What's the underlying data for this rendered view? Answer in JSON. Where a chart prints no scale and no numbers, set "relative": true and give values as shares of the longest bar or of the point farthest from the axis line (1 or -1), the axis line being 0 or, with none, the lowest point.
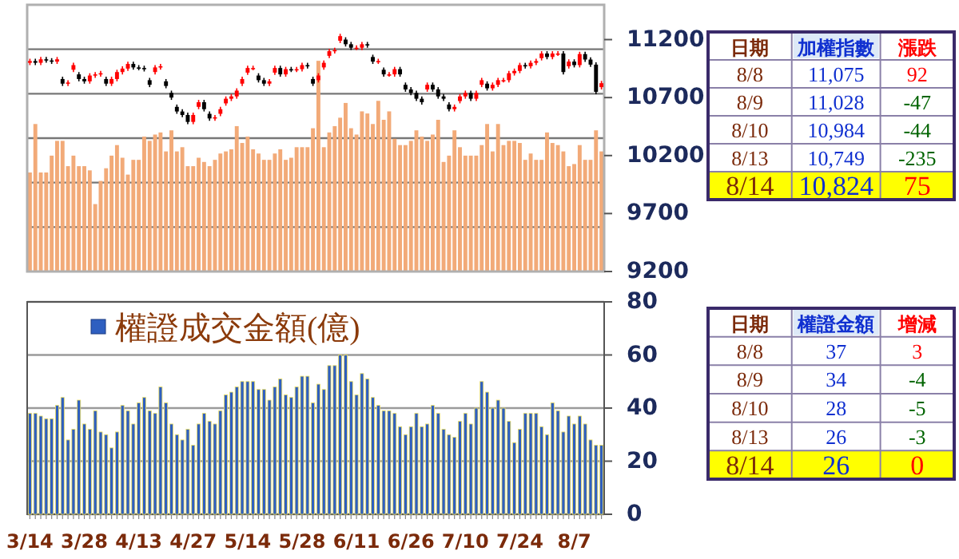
{
  "chart_data": [
    {
      "type": "candlestick",
      "categories": [
        null,
        null,
        null,
        null,
        null,
        null,
        null,
        null,
        null,
        null,
        null,
        null,
        null,
        null,
        null,
        null,
        null,
        null,
        null,
        null,
        null,
        null,
        null,
        null,
        null,
        null,
        null,
        null,
        null,
        null,
        null,
        null,
        null,
        null,
        null,
        null,
        null,
        null,
        null,
        null,
        null,
        null,
        null,
        null,
        null,
        null,
        null,
        null,
        null,
        null,
        null,
        null,
        null,
        null,
        null,
        null,
        null,
        null,
        null,
        null,
        null,
        null,
        null,
        null,
        null,
        null,
        null,
        null,
        null,
        null,
        null,
        null,
        null,
        null,
        null,
        null,
        null,
        null,
        null,
        null,
        null,
        null,
        null,
        null,
        null,
        null,
        null,
        null,
        null,
        null,
        null,
        null,
        null,
        null,
        null,
        null,
        null,
        null,
        null,
        null,
        null,
        null,
        null,
        null,
        null,
        null
      ],
      "ohlc": [
        [
          11000,
          11035,
          10980,
          11015
        ],
        [
          11015,
          11035,
          10980,
          11000
        ],
        [
          11000,
          11050,
          10980,
          11030
        ],
        [
          11030,
          11050,
          11000,
          11020
        ],
        [
          11020,
          11040,
          10990,
          11010
        ],
        [
          11010,
          11050,
          10990,
          11030
        ],
        [
          10860,
          10880,
          10800,
          10820
        ],
        [
          10820,
          10850,
          10800,
          10830
        ],
        [
          10940,
          11000,
          10920,
          10980
        ],
        [
          10900,
          10920,
          10840,
          10860
        ],
        [
          10860,
          10880,
          10820,
          10840
        ],
        [
          10840,
          10910,
          10820,
          10890
        ],
        [
          10890,
          10920,
          10870,
          10900
        ],
        [
          10900,
          10930,
          10880,
          10910
        ],
        [
          10860,
          10880,
          10800,
          10820
        ],
        [
          10820,
          10880,
          10800,
          10860
        ],
        [
          10860,
          10940,
          10840,
          10920
        ],
        [
          10920,
          10970,
          10900,
          10950
        ],
        [
          10950,
          11010,
          10930,
          10990
        ],
        [
          10990,
          11010,
          10940,
          10960
        ],
        [
          10960,
          10980,
          10935,
          10955
        ],
        [
          10955,
          10975,
          10925,
          10945
        ],
        [
          10850,
          10870,
          10790,
          10810
        ],
        [
          10920,
          10980,
          10900,
          10960
        ],
        [
          10960,
          10990,
          10940,
          10970
        ],
        [
          10840,
          10860,
          10780,
          10800
        ],
        [
          10740,
          10760,
          10680,
          10700
        ],
        [
          10620,
          10640,
          10560,
          10580
        ],
        [
          10580,
          10600,
          10530,
          10550
        ],
        [
          10550,
          10570,
          10470,
          10490
        ],
        [
          10490,
          10570,
          10470,
          10550
        ],
        [
          10620,
          10680,
          10600,
          10660
        ],
        [
          10660,
          10680,
          10580,
          10600
        ],
        [
          10560,
          10580,
          10500,
          10520
        ],
        [
          10520,
          10550,
          10500,
          10530
        ],
        [
          10560,
          10620,
          10540,
          10600
        ],
        [
          10650,
          10710,
          10630,
          10690
        ],
        [
          10690,
          10730,
          10670,
          10710
        ],
        [
          10710,
          10780,
          10690,
          10760
        ],
        [
          10820,
          10880,
          10800,
          10860
        ],
        [
          10915,
          10975,
          10895,
          10955
        ],
        [
          10955,
          10975,
          10935,
          10955
        ],
        [
          10890,
          10910,
          10830,
          10850
        ],
        [
          10850,
          10870,
          10800,
          10820
        ],
        [
          10820,
          10860,
          10800,
          10840
        ],
        [
          10915,
          10975,
          10895,
          10955
        ],
        [
          10955,
          10975,
          10880,
          10900
        ],
        [
          10900,
          10965,
          10880,
          10945
        ],
        [
          10945,
          10965,
          10920,
          10940
        ],
        [
          10940,
          10965,
          10920,
          10945
        ],
        [
          10945,
          11000,
          10925,
          10980
        ],
        [
          10980,
          11000,
          10950,
          10970
        ],
        [
          10860,
          10880,
          10800,
          10820
        ],
        [
          10850,
          10910,
          10830,
          10890
        ],
        [
          10960,
          11020,
          10940,
          11000
        ],
        [
          11060,
          11120,
          11040,
          11100
        ],
        [
          11100,
          11130,
          11080,
          11110
        ],
        [
          11190,
          11250,
          11170,
          11230
        ],
        [
          11200,
          11220,
          11140,
          11160
        ],
        [
          11160,
          11180,
          11110,
          11130
        ],
        [
          11130,
          11150,
          11110,
          11130
        ],
        [
          11130,
          11180,
          11110,
          11160
        ],
        [
          11160,
          11180,
          11130,
          11150
        ],
        [
          11050,
          11070,
          10990,
          11010
        ],
        [
          11010,
          11035,
          10990,
          11015
        ],
        [
          10940,
          10960,
          10880,
          10900
        ],
        [
          10900,
          10920,
          10880,
          10900
        ],
        [
          10900,
          10965,
          10880,
          10945
        ],
        [
          10945,
          10965,
          10880,
          10900
        ],
        [
          10810,
          10830,
          10750,
          10770
        ],
        [
          10770,
          10790,
          10720,
          10740
        ],
        [
          10740,
          10760,
          10670,
          10690
        ],
        [
          10690,
          10710,
          10640,
          10660
        ],
        [
          10770,
          10830,
          10750,
          10810
        ],
        [
          10810,
          10830,
          10750,
          10770
        ],
        [
          10770,
          10790,
          10690,
          10710
        ],
        [
          10710,
          10730,
          10670,
          10690
        ],
        [
          10640,
          10660,
          10580,
          10600
        ],
        [
          10600,
          10640,
          10580,
          10620
        ],
        [
          10670,
          10730,
          10650,
          10710
        ],
        [
          10710,
          10760,
          10690,
          10740
        ],
        [
          10740,
          10760,
          10670,
          10690
        ],
        [
          10690,
          10760,
          10670,
          10740
        ],
        [
          10810,
          10870,
          10790,
          10850
        ],
        [
          10820,
          10840,
          10760,
          10780
        ],
        [
          10780,
          10830,
          10760,
          10810
        ],
        [
          10810,
          10870,
          10790,
          10850
        ],
        [
          10850,
          10870,
          10830,
          10850
        ],
        [
          10850,
          10930,
          10830,
          10910
        ],
        [
          10910,
          10950,
          10890,
          10930
        ],
        [
          10930,
          11000,
          10910,
          10980
        ],
        [
          10980,
          11000,
          10950,
          10970
        ],
        [
          10970,
          11020,
          10950,
          11000
        ],
        [
          11000,
          11035,
          10980,
          11015
        ],
        [
          11040,
          11100,
          11020,
          11080
        ],
        [
          11080,
          11100,
          11030,
          11050
        ],
        [
          11050,
          11100,
          11030,
          11080
        ],
        [
          11080,
          11100,
          11060,
          11080
        ],
        [
          11080,
          11100,
          10900,
          10920
        ],
        [
          10970,
          11030,
          10950,
          11010
        ],
        [
          11010,
          11030,
          10960,
          10980
        ],
        [
          10980,
          11095,
          10960,
          11075
        ],
        [
          11075,
          11095,
          11008,
          11028
        ],
        [
          11028,
          11048,
          10964,
          10984
        ],
        [
          10984,
          11004,
          10729,
          10749
        ],
        [
          10790,
          10844,
          10770,
          10824
        ]
      ],
      "colors": [
        "#ff0000",
        "#000000",
        "#ff0000",
        "#000000",
        "#000000",
        "#ff0000",
        "#000000",
        "#ff0000",
        "#ff0000",
        "#000000",
        "#000000",
        "#ff0000",
        "#ff0000",
        "#ff0000",
        "#000000",
        "#ff0000",
        "#ff0000",
        "#ff0000",
        "#ff0000",
        "#000000",
        "#000000",
        "#000000",
        "#000000",
        "#ff0000",
        "#ff0000",
        "#000000",
        "#000000",
        "#000000",
        "#000000",
        "#000000",
        "#ff0000",
        "#ff0000",
        "#000000",
        "#000000",
        "#ff0000",
        "#ff0000",
        "#ff0000",
        "#ff0000",
        "#ff0000",
        "#ff0000",
        "#ff0000",
        "#ff0000",
        "#000000",
        "#000000",
        "#ff0000",
        "#ff0000",
        "#000000",
        "#ff0000",
        "#000000",
        "#ff0000",
        "#ff0000",
        "#000000",
        "#000000",
        "#ff0000",
        "#ff0000",
        "#ff0000",
        "#ff0000",
        "#ff0000",
        "#000000",
        "#000000",
        "#ff0000",
        "#ff0000",
        "#000000",
        "#000000",
        "#ff0000",
        "#000000",
        "#ff0000",
        "#ff0000",
        "#000000",
        "#000000",
        "#000000",
        "#000000",
        "#000000",
        "#ff0000",
        "#000000",
        "#000000",
        "#000000",
        "#000000",
        "#ff0000",
        "#ff0000",
        "#ff0000",
        "#000000",
        "#ff0000",
        "#ff0000",
        "#000000",
        "#ff0000",
        "#ff0000",
        "#ff0000",
        "#ff0000",
        "#ff0000",
        "#ff0000",
        "#000000",
        "#ff0000",
        "#ff0000",
        "#ff0000",
        "#000000",
        "#ff0000",
        "#ff0000",
        "#000000",
        "#ff0000",
        "#000000",
        "#ff0000",
        "#000000",
        "#000000",
        "#000000",
        "#ff0000"
      ],
      "ylim": [
        9200,
        11500
      ],
      "yticks": [
        9200,
        9700,
        10200,
        10700,
        11200
      ],
      "tick_labels": "y"
    },
    {
      "type": "bar",
      "categories": [
        null,
        null,
        null,
        null,
        null,
        null,
        null,
        null,
        null,
        null,
        null,
        null,
        null,
        null,
        null,
        null,
        null,
        null,
        null,
        null,
        null,
        null,
        null,
        null,
        null,
        null,
        null,
        null,
        null,
        null,
        null,
        null,
        null,
        null,
        null,
        null,
        null,
        null,
        null,
        null,
        null,
        null,
        null,
        null,
        null,
        null,
        null,
        null,
        null,
        null,
        null,
        null,
        null,
        null,
        null,
        null,
        null,
        null,
        null,
        null,
        null,
        null,
        null,
        null,
        null,
        null,
        null,
        null,
        null,
        null,
        null,
        null,
        null,
        null,
        null,
        null,
        null,
        null,
        null,
        null,
        null,
        null,
        null,
        null,
        null,
        null,
        null,
        null,
        null,
        null,
        null,
        null,
        null,
        null,
        null,
        null,
        null,
        null,
        null,
        null,
        null,
        null,
        null,
        null,
        null,
        null
      ],
      "values": [
        0.47,
        0.7,
        0.47,
        0.47,
        0.55,
        0.62,
        0.62,
        0.5,
        0.55,
        0.5,
        0.5,
        0.48,
        0.32,
        0.43,
        0.49,
        0.55,
        0.6,
        0.54,
        0.46,
        0.53,
        0.53,
        0.64,
        0.62,
        0.65,
        0.66,
        0.57,
        0.67,
        0.57,
        0.59,
        0.5,
        0.5,
        0.54,
        0.52,
        0.5,
        0.53,
        0.56,
        0.57,
        0.58,
        0.69,
        0.61,
        0.64,
        0.58,
        0.56,
        0.53,
        0.53,
        0.56,
        0.58,
        0.53,
        0.54,
        0.59,
        0.59,
        0.59,
        0.68,
        1,
        0.59,
        0.66,
        0.69,
        0.73,
        0.8,
        0.68,
        0.65,
        0.76,
        0.75,
        0.7,
        0.81,
        0.72,
        0.76,
        0.63,
        0.6,
        0.6,
        0.62,
        0.67,
        0.64,
        0.62,
        0.65,
        0.72,
        0.52,
        0.55,
        0.67,
        0.59,
        0.55,
        0.55,
        0.55,
        0.6,
        0.7,
        0.57,
        0.7,
        0.6,
        0.62,
        0.62,
        0.61,
        0.53,
        0.56,
        0.53,
        0.53,
        0.66,
        0.61,
        0.6,
        0.57,
        0.5,
        0.51,
        0.6,
        0.53,
        0.53,
        0.67,
        0.57
      ],
      "color": "#f2aa78",
      "relative": true,
      "grid": true,
      "tick_labels": false
    },
    {
      "type": "bar",
      "categories": [
        "3/14",
        null,
        null,
        null,
        null,
        null,
        null,
        null,
        null,
        null,
        "3/28",
        null,
        null,
        null,
        null,
        null,
        null,
        null,
        null,
        null,
        "4/13",
        null,
        null,
        null,
        null,
        null,
        null,
        null,
        null,
        null,
        "4/27",
        null,
        null,
        null,
        null,
        null,
        null,
        null,
        null,
        null,
        "5/14",
        null,
        null,
        null,
        null,
        null,
        null,
        null,
        null,
        null,
        "5/28",
        null,
        null,
        null,
        null,
        null,
        null,
        null,
        null,
        null,
        "6/11",
        null,
        null,
        null,
        null,
        null,
        null,
        null,
        null,
        null,
        "6/26",
        null,
        null,
        null,
        null,
        null,
        null,
        null,
        null,
        null,
        "7/10",
        null,
        null,
        null,
        null,
        null,
        null,
        null,
        null,
        null,
        "7/24",
        null,
        null,
        null,
        null,
        null,
        null,
        null,
        null,
        null,
        "8/7",
        null,
        null,
        null,
        null,
        null
      ],
      "series": [
        {
          "name": "權證成交金額(億)",
          "color": "#2e5fc0",
          "values": [
            38,
            38,
            37,
            36,
            36,
            41,
            44,
            28,
            32,
            43,
            34,
            32,
            39,
            31,
            30,
            25,
            31,
            41,
            39,
            34,
            42,
            44,
            39,
            38,
            48,
            42,
            34,
            30,
            28,
            32,
            26,
            34,
            38,
            35,
            34,
            39,
            45,
            46,
            48,
            50,
            50,
            50,
            47,
            47,
            43,
            48,
            51,
            45,
            44,
            48,
            52,
            52,
            42,
            49,
            47,
            56,
            56,
            60,
            60,
            50,
            45,
            53,
            51,
            44,
            41,
            39,
            39,
            38,
            33,
            30,
            33,
            38,
            33,
            34,
            41,
            38,
            32,
            30,
            29,
            35,
            38,
            34,
            40,
            50,
            46,
            40,
            43,
            40,
            35,
            27,
            32,
            38,
            38,
            38,
            33,
            30,
            42,
            39,
            31,
            37,
            34,
            37,
            34,
            28,
            26,
            26
          ]
        }
      ],
      "ylim": [
        0,
        80
      ],
      "yticks": [
        0,
        20,
        40,
        60,
        80
      ],
      "grid": "y",
      "legend": "top"
    },
    {
      "type": "heatmap",
      "ylabel": "日期",
      "categories": [
        "加權指數",
        "漲跌"
      ],
      "y_categories": [
        "8/8",
        "8/9",
        "8/10",
        "8/13",
        "8/14"
      ],
      "cells": [
        [
          11075,
          92
        ],
        [
          11028,
          -47
        ],
        [
          10984,
          -44
        ],
        [
          10749,
          -235
        ],
        [
          10824,
          75
        ]
      ],
      "cell_labels": [
        [
          "11,075",
          "92"
        ],
        [
          "11,028",
          "-47"
        ],
        [
          "10,984",
          "-44"
        ],
        [
          "10,749",
          "-235"
        ],
        [
          "10,824",
          "75"
        ]
      ]
    },
    {
      "type": "heatmap",
      "ylabel": "日期",
      "categories": [
        "權證金額",
        "增減"
      ],
      "y_categories": [
        "8/8",
        "8/9",
        "8/10",
        "8/13",
        "8/14"
      ],
      "cells": [
        [
          37,
          3
        ],
        [
          34,
          -4
        ],
        [
          28,
          -5
        ],
        [
          26,
          -3
        ],
        [
          26,
          0
        ]
      ],
      "cell_labels": [
        [
          "37",
          "3"
        ],
        [
          "34",
          "-4"
        ],
        [
          "28",
          "-5"
        ],
        [
          "26",
          "-3"
        ],
        [
          "26",
          "0"
        ]
      ]
    }
  ]
}
